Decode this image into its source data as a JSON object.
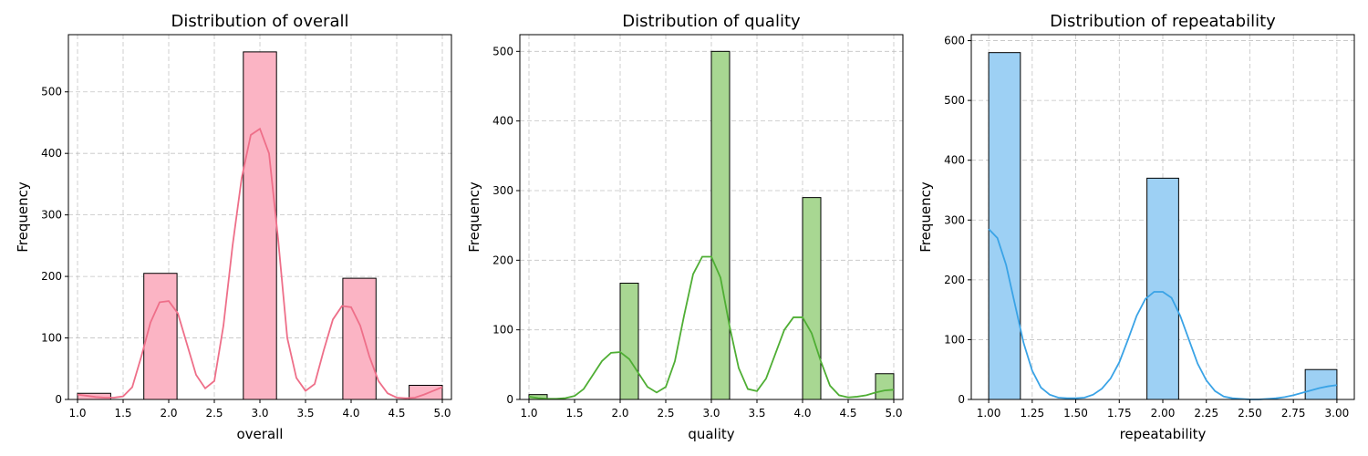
{
  "chart_data": [
    {
      "type": "bar",
      "title": "Distribution of overall",
      "xlabel": "overall",
      "ylabel": "Frequency",
      "xlim": [
        0.9,
        5.1
      ],
      "ylim": [
        0,
        593
      ],
      "xticks": [
        "1.0",
        "1.5",
        "2.0",
        "2.5",
        "3.0",
        "3.5",
        "4.0",
        "4.5",
        "5.0"
      ],
      "yticks": [
        "0",
        "100",
        "200",
        "300",
        "400",
        "500"
      ],
      "bar_color": "#fbb4c4",
      "kde_color": "#ee6f89",
      "grid": true,
      "bins": [
        {
          "x0": 1.0,
          "x1": 1.364,
          "count": 10
        },
        {
          "x0": 1.727,
          "x1": 2.091,
          "count": 205
        },
        {
          "x0": 2.818,
          "x1": 3.182,
          "count": 565
        },
        {
          "x0": 3.909,
          "x1": 4.273,
          "count": 197
        },
        {
          "x0": 4.636,
          "x1": 5.0,
          "count": 23
        }
      ],
      "kde": {
        "x": [
          1.0,
          1.1,
          1.2,
          1.3,
          1.4,
          1.5,
          1.6,
          1.7,
          1.8,
          1.9,
          2.0,
          2.1,
          2.2,
          2.3,
          2.4,
          2.5,
          2.6,
          2.7,
          2.8,
          2.9,
          3.0,
          3.1,
          3.2,
          3.3,
          3.4,
          3.5,
          3.6,
          3.7,
          3.8,
          3.9,
          4.0,
          4.1,
          4.2,
          4.3,
          4.4,
          4.5,
          4.6,
          4.7,
          4.8,
          4.9,
          5.0
        ],
        "y": [
          8,
          6,
          4,
          3,
          3,
          5,
          20,
          70,
          125,
          158,
          160,
          140,
          90,
          40,
          18,
          30,
          120,
          250,
          360,
          430,
          440,
          400,
          260,
          100,
          35,
          14,
          25,
          80,
          130,
          152,
          150,
          120,
          70,
          30,
          10,
          3,
          2,
          3,
          8,
          14,
          20
        ]
      }
    },
    {
      "type": "bar",
      "title": "Distribution of quality",
      "xlabel": "quality",
      "ylabel": "Frequency",
      "xlim": [
        0.9,
        5.1
      ],
      "ylim": [
        0,
        524
      ],
      "xticks": [
        "1.0",
        "1.5",
        "2.0",
        "2.5",
        "3.0",
        "3.5",
        "4.0",
        "4.5",
        "5.0"
      ],
      "yticks": [
        "0",
        "100",
        "200",
        "300",
        "400",
        "500"
      ],
      "bar_color": "#a8d792",
      "kde_color": "#4fae34",
      "grid": true,
      "bins": [
        {
          "x0": 1.0,
          "x1": 1.2,
          "count": 7
        },
        {
          "x0": 2.0,
          "x1": 2.2,
          "count": 167
        },
        {
          "x0": 3.0,
          "x1": 3.2,
          "count": 500
        },
        {
          "x0": 4.0,
          "x1": 4.2,
          "count": 290
        },
        {
          "x0": 4.8,
          "x1": 5.0,
          "count": 37
        }
      ],
      "kde": {
        "x": [
          1.0,
          1.1,
          1.2,
          1.3,
          1.4,
          1.5,
          1.6,
          1.7,
          1.8,
          1.9,
          2.0,
          2.1,
          2.2,
          2.3,
          2.4,
          2.5,
          2.6,
          2.7,
          2.8,
          2.9,
          3.0,
          3.1,
          3.2,
          3.3,
          3.4,
          3.5,
          3.6,
          3.7,
          3.8,
          3.9,
          4.0,
          4.1,
          4.2,
          4.3,
          4.4,
          4.5,
          4.6,
          4.7,
          4.8,
          4.9,
          5.0
        ],
        "y": [
          4,
          2,
          1,
          1,
          2,
          5,
          15,
          35,
          55,
          67,
          68,
          58,
          38,
          18,
          10,
          18,
          55,
          120,
          180,
          205,
          205,
          175,
          105,
          45,
          15,
          12,
          30,
          65,
          100,
          118,
          118,
          95,
          55,
          20,
          6,
          3,
          4,
          6,
          10,
          13,
          14
        ]
      }
    },
    {
      "type": "bar",
      "title": "Distribution of repeatability",
      "xlabel": "repeatability",
      "ylabel": "Frequency",
      "xlim": [
        0.9,
        3.1
      ],
      "ylim": [
        0,
        610
      ],
      "xticks": [
        "1.00",
        "1.25",
        "1.50",
        "1.75",
        "2.00",
        "2.25",
        "2.50",
        "2.75",
        "3.00"
      ],
      "yticks": [
        "0",
        "100",
        "200",
        "300",
        "400",
        "500",
        "600"
      ],
      "bar_color": "#9dd0f4",
      "kde_color": "#3aa3e6",
      "grid": true,
      "bins": [
        {
          "x0": 1.0,
          "x1": 1.182,
          "count": 580
        },
        {
          "x0": 1.909,
          "x1": 2.091,
          "count": 370
        },
        {
          "x0": 2.818,
          "x1": 3.0,
          "count": 50
        }
      ],
      "kde": {
        "x": [
          1.0,
          1.05,
          1.1,
          1.15,
          1.2,
          1.25,
          1.3,
          1.35,
          1.4,
          1.45,
          1.5,
          1.55,
          1.6,
          1.65,
          1.7,
          1.75,
          1.8,
          1.85,
          1.9,
          1.95,
          2.0,
          2.05,
          2.1,
          2.15,
          2.2,
          2.25,
          2.3,
          2.35,
          2.4,
          2.45,
          2.5,
          2.55,
          2.6,
          2.65,
          2.7,
          2.75,
          2.8,
          2.85,
          2.9,
          2.95,
          3.0
        ],
        "y": [
          285,
          270,
          225,
          160,
          95,
          48,
          20,
          8,
          3,
          2,
          2,
          3,
          8,
          18,
          35,
          62,
          100,
          140,
          168,
          180,
          180,
          170,
          140,
          100,
          60,
          32,
          14,
          5,
          2,
          1,
          0,
          0,
          1,
          2,
          4,
          7,
          11,
          15,
          19,
          22,
          24
        ]
      }
    }
  ]
}
